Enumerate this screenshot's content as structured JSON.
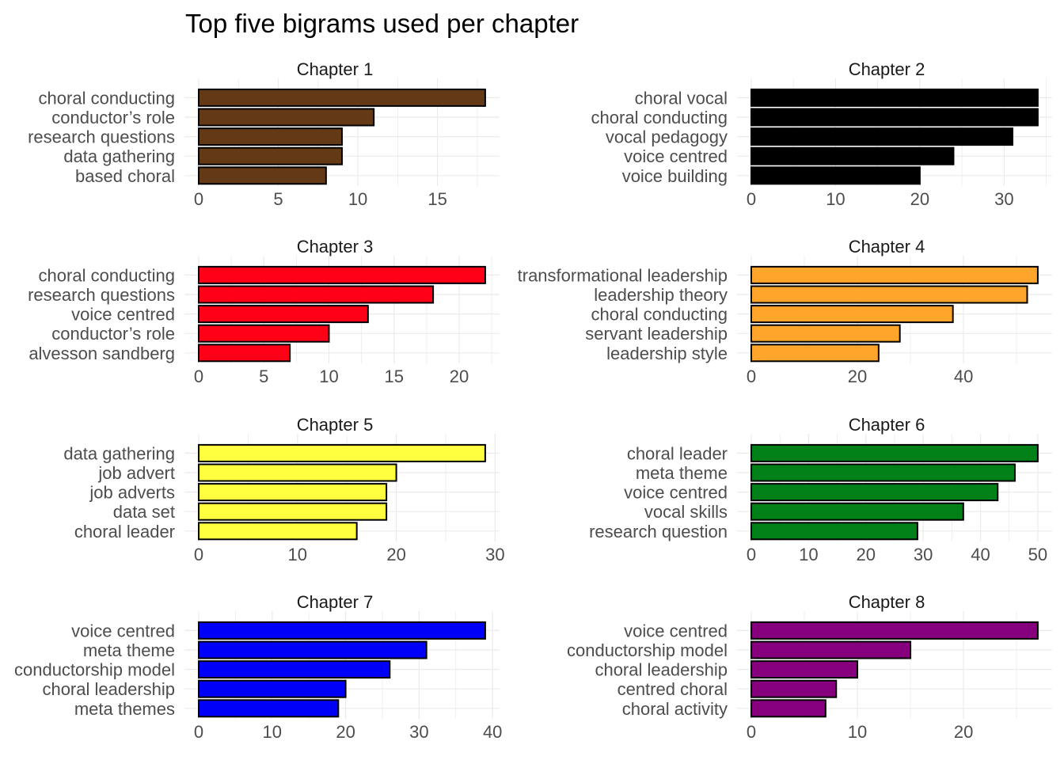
{
  "chart_data": {
    "type": "bar",
    "title": "Top five bigrams used per chapter",
    "grid": true,
    "panels": [
      {
        "strip": "Chapter 1",
        "color": "#643a16",
        "categories": [
          "choral conducting",
          "conductor’s role",
          "research questions",
          "data gathering",
          "based choral"
        ],
        "values": [
          18,
          11,
          9,
          9,
          8
        ],
        "xlim": [
          0,
          18.9
        ],
        "xticks": [
          0,
          5,
          10,
          15
        ]
      },
      {
        "strip": "Chapter 2",
        "color": "#000000",
        "categories": [
          "choral vocal",
          "choral conducting",
          "vocal pedagogy",
          "voice centred",
          "voice building"
        ],
        "values": [
          34,
          34,
          31,
          24,
          20
        ],
        "xlim": [
          0,
          35.7
        ],
        "xticks": [
          0,
          10,
          20,
          30
        ]
      },
      {
        "strip": "Chapter 3",
        "color": "#ff0016",
        "categories": [
          "choral conducting",
          "research questions",
          "voice centred",
          "conductor’s role",
          "alvesson sandberg"
        ],
        "values": [
          22,
          18,
          13,
          10,
          7
        ],
        "xlim": [
          0,
          23.1
        ],
        "xticks": [
          0,
          5,
          10,
          15,
          20
        ]
      },
      {
        "strip": "Chapter 4",
        "color": "#ffa52b",
        "categories": [
          "transformational leadership",
          "leadership theory",
          "choral conducting",
          "servant leadership",
          "leadership style"
        ],
        "values": [
          54,
          52,
          38,
          28,
          24
        ],
        "xlim": [
          0,
          56.7
        ],
        "xticks": [
          0,
          20,
          40
        ]
      },
      {
        "strip": "Chapter 5",
        "color": "#ffff3f",
        "categories": [
          "data gathering",
          "job advert",
          "job adverts",
          "data set",
          "choral leader"
        ],
        "values": [
          29,
          20,
          19,
          19,
          16
        ],
        "xlim": [
          0,
          30.45
        ],
        "xticks": [
          0,
          10,
          20,
          30
        ]
      },
      {
        "strip": "Chapter 6",
        "color": "#008017",
        "categories": [
          "choral leader",
          "meta theme",
          "voice centred",
          "vocal skills",
          "research question"
        ],
        "values": [
          50,
          46,
          43,
          37,
          29
        ],
        "xlim": [
          0,
          52.5
        ],
        "xticks": [
          0,
          10,
          20,
          30,
          40,
          50
        ]
      },
      {
        "strip": "Chapter 7",
        "color": "#0000f9",
        "categories": [
          "voice centred",
          "meta theme",
          "conductorship model",
          "choral leadership",
          "meta themes"
        ],
        "values": [
          39,
          31,
          26,
          20,
          19
        ],
        "xlim": [
          0,
          40.95
        ],
        "xticks": [
          0,
          10,
          20,
          30,
          40
        ]
      },
      {
        "strip": "Chapter 8",
        "color": "#86007d",
        "categories": [
          "voice centred",
          "conductorship model",
          "choral leadership",
          "centred choral",
          "choral activity"
        ],
        "values": [
          27,
          15,
          10,
          8,
          7
        ],
        "xlim": [
          0,
          28.35
        ],
        "xticks": [
          0,
          10,
          20
        ]
      }
    ]
  }
}
